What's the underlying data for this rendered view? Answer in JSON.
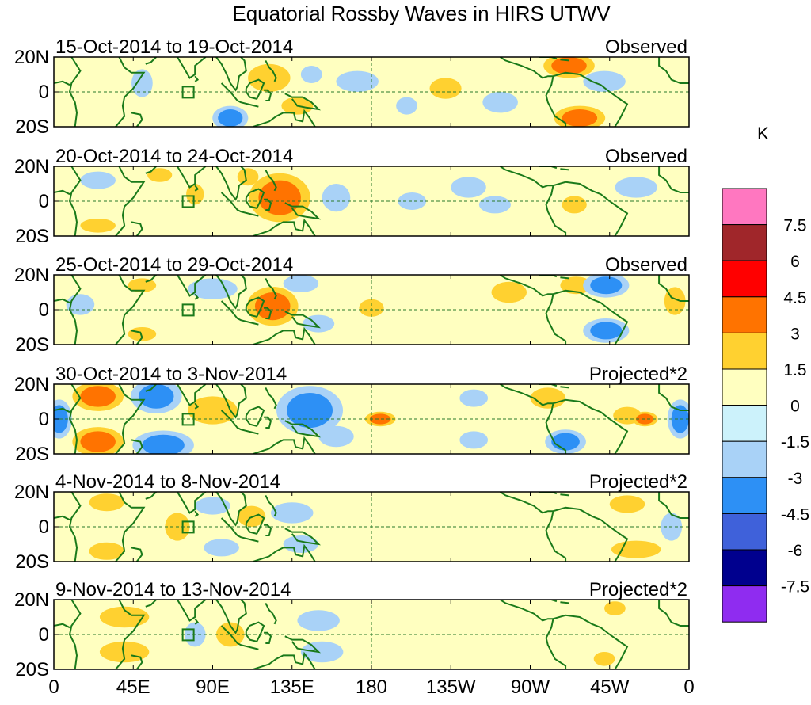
{
  "chart_data": {
    "type": "heatmap",
    "title": "Equatorial Rossby Waves in HIRS UTWV",
    "units": "K",
    "x_ticks": [
      "0",
      "45E",
      "90E",
      "135E",
      "180",
      "135W",
      "90W",
      "45W",
      "0"
    ],
    "y_ticks": [
      "20N",
      "0",
      "20S"
    ],
    "colorbar": {
      "labels": [
        "7.5",
        "6",
        "4.5",
        "3",
        "1.5",
        "0",
        "-1.5",
        "-3",
        "-4.5",
        "-6",
        "-7.5"
      ],
      "colors": [
        "#ff77c0",
        "#a0262a",
        "#ff0000",
        "#ff7300",
        "#ffd130",
        "#ffffc0",
        "#ccf2fb",
        "#a9d2f7",
        "#2d90f5",
        "#3f61da",
        "#00008e",
        "#8f2cf0"
      ]
    },
    "panels": [
      {
        "dates": "15-Oct-2014 to 19-Oct-2014",
        "label": "Observed",
        "blobs": [
          {
            "lon": 122,
            "lat": 8,
            "rx": 12,
            "ry": 8,
            "value": 2
          },
          {
            "lon": 138,
            "lat": -8,
            "rx": 9,
            "ry": 5,
            "value": 2
          },
          {
            "lon": 146,
            "lat": 10,
            "rx": 6,
            "ry": 5,
            "value": -2
          },
          {
            "lon": 172,
            "lat": 6,
            "rx": 12,
            "ry": 6,
            "value": -2
          },
          {
            "lon": 222,
            "lat": 2,
            "rx": 9,
            "ry": 6,
            "value": 2
          },
          {
            "lon": 200,
            "lat": -8,
            "rx": 6,
            "ry": 5,
            "value": -2
          },
          {
            "lon": 253,
            "lat": -6,
            "rx": 10,
            "ry": 6,
            "value": -2
          },
          {
            "lon": 292,
            "lat": 15,
            "rx": 10,
            "ry": 5,
            "value": 3.5
          },
          {
            "lon": 298,
            "lat": -15,
            "rx": 10,
            "ry": 5,
            "value": 3.5
          },
          {
            "lon": 312,
            "lat": 6,
            "rx": 12,
            "ry": 6,
            "value": -2
          },
          {
            "lon": 50,
            "lat": 5,
            "rx": 6,
            "ry": 8,
            "value": -2
          },
          {
            "lon": 100,
            "lat": -15,
            "rx": 7,
            "ry": 5,
            "value": -3.5
          }
        ]
      },
      {
        "dates": "20-Oct-2014 to 24-Oct-2014",
        "label": "Observed",
        "blobs": [
          {
            "lon": 128,
            "lat": 2,
            "rx": 12,
            "ry": 10,
            "value": 3.5
          },
          {
            "lon": 110,
            "lat": 14,
            "rx": 6,
            "ry": 5,
            "value": 2
          },
          {
            "lon": 80,
            "lat": 4,
            "rx": 5,
            "ry": 6,
            "value": 2
          },
          {
            "lon": 160,
            "lat": 2,
            "rx": 8,
            "ry": 8,
            "value": -2
          },
          {
            "lon": 203,
            "lat": 0,
            "rx": 8,
            "ry": 5,
            "value": -2
          },
          {
            "lon": 235,
            "lat": 8,
            "rx": 10,
            "ry": 6,
            "value": -2
          },
          {
            "lon": 250,
            "lat": -2,
            "rx": 9,
            "ry": 5,
            "value": -2
          },
          {
            "lon": 330,
            "lat": 8,
            "rx": 12,
            "ry": 6,
            "value": -2
          },
          {
            "lon": 295,
            "lat": -2,
            "rx": 7,
            "ry": 5,
            "value": 2
          },
          {
            "lon": 25,
            "lat": -14,
            "rx": 10,
            "ry": 4,
            "value": 2
          },
          {
            "lon": 25,
            "lat": 12,
            "rx": 10,
            "ry": 5,
            "value": -2
          },
          {
            "lon": 60,
            "lat": 15,
            "rx": 7,
            "ry": 4,
            "value": 2
          }
        ]
      },
      {
        "dates": "25-Oct-2014 to 29-Oct-2014",
        "label": "Observed",
        "blobs": [
          {
            "lon": 124,
            "lat": 2,
            "rx": 10,
            "ry": 8,
            "value": 3.5
          },
          {
            "lon": 140,
            "lat": 15,
            "rx": 10,
            "ry": 5,
            "value": -2
          },
          {
            "lon": 150,
            "lat": -8,
            "rx": 9,
            "ry": 5,
            "value": -2
          },
          {
            "lon": 90,
            "lat": 12,
            "rx": 14,
            "ry": 6,
            "value": -2
          },
          {
            "lon": 180,
            "lat": 1,
            "rx": 7,
            "ry": 5,
            "value": 2
          },
          {
            "lon": 258,
            "lat": 10,
            "rx": 10,
            "ry": 6,
            "value": 2
          },
          {
            "lon": 296,
            "lat": 14,
            "rx": 9,
            "ry": 5,
            "value": 2
          },
          {
            "lon": 313,
            "lat": 14,
            "rx": 9,
            "ry": 5,
            "value": -3.5
          },
          {
            "lon": 313,
            "lat": -12,
            "rx": 9,
            "ry": 5,
            "value": -3.5
          },
          {
            "lon": 50,
            "lat": 14,
            "rx": 8,
            "ry": 4,
            "value": 2
          },
          {
            "lon": 50,
            "lat": -14,
            "rx": 8,
            "ry": 4,
            "value": 2
          },
          {
            "lon": 15,
            "lat": 3,
            "rx": 8,
            "ry": 6,
            "value": -2
          },
          {
            "lon": 352,
            "lat": 5,
            "rx": 6,
            "ry": 8,
            "value": 2
          }
        ]
      },
      {
        "dates": "30-Oct-2014 to 3-Nov-2014",
        "label": "Projected*2",
        "blobs": [
          {
            "lon": 58,
            "lat": 13,
            "rx": 10,
            "ry": 7,
            "value": -3.5
          },
          {
            "lon": 62,
            "lat": -15,
            "rx": 12,
            "ry": 6,
            "value": -3.5
          },
          {
            "lon": 25,
            "lat": 13,
            "rx": 10,
            "ry": 6,
            "value": 3.5
          },
          {
            "lon": 25,
            "lat": -13,
            "rx": 10,
            "ry": 6,
            "value": 3.5
          },
          {
            "lon": 3,
            "lat": 0,
            "rx": 5,
            "ry": 8,
            "value": -3.5
          },
          {
            "lon": 90,
            "lat": 5,
            "rx": 14,
            "ry": 8,
            "value": 2
          },
          {
            "lon": 145,
            "lat": 5,
            "rx": 13,
            "ry": 10,
            "value": -3.5
          },
          {
            "lon": 160,
            "lat": -10,
            "rx": 10,
            "ry": 6,
            "value": -2
          },
          {
            "lon": 185,
            "lat": 0,
            "rx": 6,
            "ry": 3,
            "value": 3.5
          },
          {
            "lon": 238,
            "lat": 12,
            "rx": 8,
            "ry": 5,
            "value": -2
          },
          {
            "lon": 238,
            "lat": -12,
            "rx": 8,
            "ry": 5,
            "value": -2
          },
          {
            "lon": 280,
            "lat": 12,
            "rx": 10,
            "ry": 6,
            "value": 2
          },
          {
            "lon": 290,
            "lat": -13,
            "rx": 8,
            "ry": 5,
            "value": -3.5
          },
          {
            "lon": 325,
            "lat": 2,
            "rx": 8,
            "ry": 5,
            "value": 2
          },
          {
            "lon": 335,
            "lat": 0,
            "rx": 5,
            "ry": 3,
            "value": 3.5
          },
          {
            "lon": 355,
            "lat": 0,
            "rx": 5,
            "ry": 8,
            "value": -3.5
          }
        ]
      },
      {
        "dates": "4-Nov-2014 to 8-Nov-2014",
        "label": "Projected*2",
        "blobs": [
          {
            "lon": 70,
            "lat": 0,
            "rx": 7,
            "ry": 8,
            "value": 2
          },
          {
            "lon": 90,
            "lat": 12,
            "rx": 10,
            "ry": 5,
            "value": -2
          },
          {
            "lon": 95,
            "lat": -12,
            "rx": 10,
            "ry": 5,
            "value": -2
          },
          {
            "lon": 112,
            "lat": 6,
            "rx": 8,
            "ry": 6,
            "value": 2
          },
          {
            "lon": 135,
            "lat": 8,
            "rx": 12,
            "ry": 6,
            "value": -2
          },
          {
            "lon": 140,
            "lat": -10,
            "rx": 10,
            "ry": 5,
            "value": -2
          },
          {
            "lon": 30,
            "lat": 14,
            "rx": 10,
            "ry": 5,
            "value": 2
          },
          {
            "lon": 30,
            "lat": -14,
            "rx": 10,
            "ry": 5,
            "value": 2
          },
          {
            "lon": 325,
            "lat": 13,
            "rx": 10,
            "ry": 5,
            "value": 2
          },
          {
            "lon": 330,
            "lat": -13,
            "rx": 14,
            "ry": 5,
            "value": 2
          },
          {
            "lon": 350,
            "lat": 0,
            "rx": 6,
            "ry": 8,
            "value": -2
          }
        ]
      },
      {
        "dates": "9-Nov-2014 to 13-Nov-2014",
        "label": "Projected*2",
        "blobs": [
          {
            "lon": 80,
            "lat": 0,
            "rx": 6,
            "ry": 7,
            "value": -2
          },
          {
            "lon": 100,
            "lat": 0,
            "rx": 8,
            "ry": 7,
            "value": 2
          },
          {
            "lon": 150,
            "lat": 8,
            "rx": 12,
            "ry": 6,
            "value": -2
          },
          {
            "lon": 152,
            "lat": -10,
            "rx": 12,
            "ry": 6,
            "value": -2
          },
          {
            "lon": 318,
            "lat": 15,
            "rx": 6,
            "ry": 4,
            "value": 2
          },
          {
            "lon": 312,
            "lat": -14,
            "rx": 6,
            "ry": 4,
            "value": 2
          },
          {
            "lon": 40,
            "lat": 10,
            "rx": 14,
            "ry": 6,
            "value": 2
          },
          {
            "lon": 40,
            "lat": -10,
            "rx": 14,
            "ry": 6,
            "value": 2
          }
        ]
      }
    ]
  }
}
